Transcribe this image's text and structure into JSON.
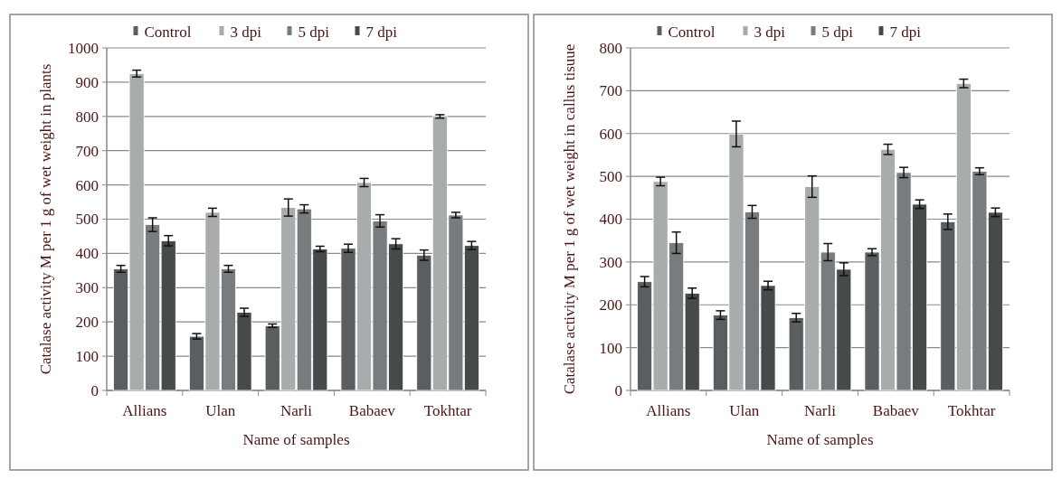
{
  "chart_data": [
    {
      "type": "bar",
      "xlabel": "Name of samples",
      "ylabel": "Catalase activity M per 1 g of wet weight in plants",
      "categories": [
        "Allians",
        "Ulan",
        "Narli",
        "Babaev",
        "Tokhtar"
      ],
      "series": [
        {
          "name": "Control",
          "color": "#5a5e60",
          "values": [
            355,
            158,
            189,
            415,
            395
          ],
          "errors": [
            10,
            8,
            5,
            12,
            15
          ]
        },
        {
          "name": "3 dpi",
          "color": "#a9acad",
          "values": [
            925,
            520,
            534,
            607,
            800
          ],
          "errors": [
            10,
            12,
            25,
            12,
            5
          ]
        },
        {
          "name": "5 dpi",
          "color": "#787c7e",
          "values": [
            484,
            355,
            530,
            495,
            512
          ],
          "errors": [
            20,
            10,
            12,
            18,
            8
          ]
        },
        {
          "name": "7 dpi",
          "color": "#464a4b",
          "values": [
            437,
            228,
            413,
            428,
            423
          ],
          "errors": [
            15,
            12,
            8,
            15,
            12
          ]
        }
      ],
      "ylim": [
        0,
        1000
      ],
      "yticks": [
        0,
        100,
        200,
        300,
        400,
        500,
        600,
        700,
        800,
        900,
        1000
      ],
      "grid": "y",
      "legend": "top"
    },
    {
      "type": "bar",
      "xlabel": "Name of samples",
      "ylabel": "Catalase activity M per 1 g of wet weight in callus tisuue",
      "categories": [
        "Allians",
        "Ulan",
        "Narli",
        "Babaev",
        "Tokhtar"
      ],
      "series": [
        {
          "name": "Control",
          "color": "#5a5e60",
          "values": [
            254,
            176,
            170,
            323,
            394
          ],
          "errors": [
            12,
            10,
            10,
            8,
            18
          ]
        },
        {
          "name": "3 dpi",
          "color": "#a9acad",
          "values": [
            488,
            599,
            476,
            563,
            717
          ],
          "errors": [
            10,
            30,
            25,
            12,
            10
          ]
        },
        {
          "name": "5 dpi",
          "color": "#787c7e",
          "values": [
            345,
            417,
            323,
            509,
            512
          ],
          "errors": [
            25,
            15,
            20,
            12,
            8
          ]
        },
        {
          "name": "7 dpi",
          "color": "#464a4b",
          "values": [
            227,
            245,
            283,
            435,
            416
          ],
          "errors": [
            12,
            10,
            15,
            10,
            10
          ]
        }
      ],
      "ylim": [
        0,
        800
      ],
      "yticks": [
        0,
        100,
        200,
        300,
        400,
        500,
        600,
        700,
        800
      ],
      "grid": "y",
      "legend": "top"
    }
  ]
}
